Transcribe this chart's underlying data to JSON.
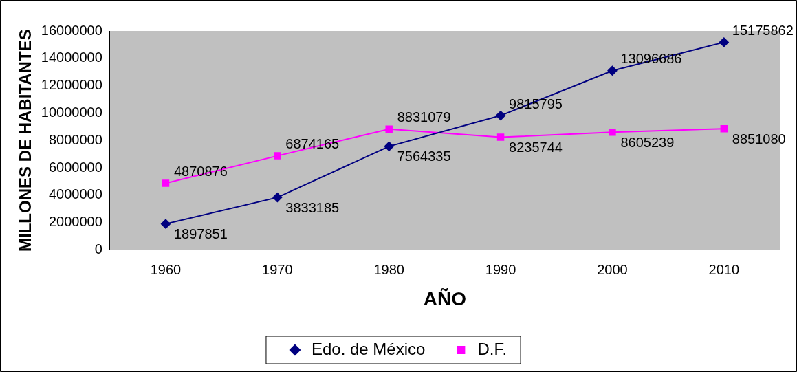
{
  "chart_data": {
    "type": "line",
    "xlabel": "AÑO",
    "ylabel": "MILLONES DE HABITANTES",
    "categories": [
      "1960",
      "1970",
      "1980",
      "1990",
      "2000",
      "2010"
    ],
    "series": [
      {
        "name": "Edo. de México",
        "color": "#000080",
        "marker": "diamond",
        "values": [
          1897851,
          3833185,
          7564335,
          9815795,
          13096686,
          15175862
        ]
      },
      {
        "name": "D.F.",
        "color": "#ff00ff",
        "marker": "square",
        "values": [
          4870876,
          6874165,
          8831079,
          8235744,
          8605239,
          8851080
        ]
      }
    ],
    "ylim": [
      0,
      16000000
    ],
    "yticks": [
      0,
      2000000,
      4000000,
      6000000,
      8000000,
      10000000,
      12000000,
      14000000,
      16000000
    ],
    "grid": false,
    "legend": "bottom",
    "data_labels": true
  }
}
